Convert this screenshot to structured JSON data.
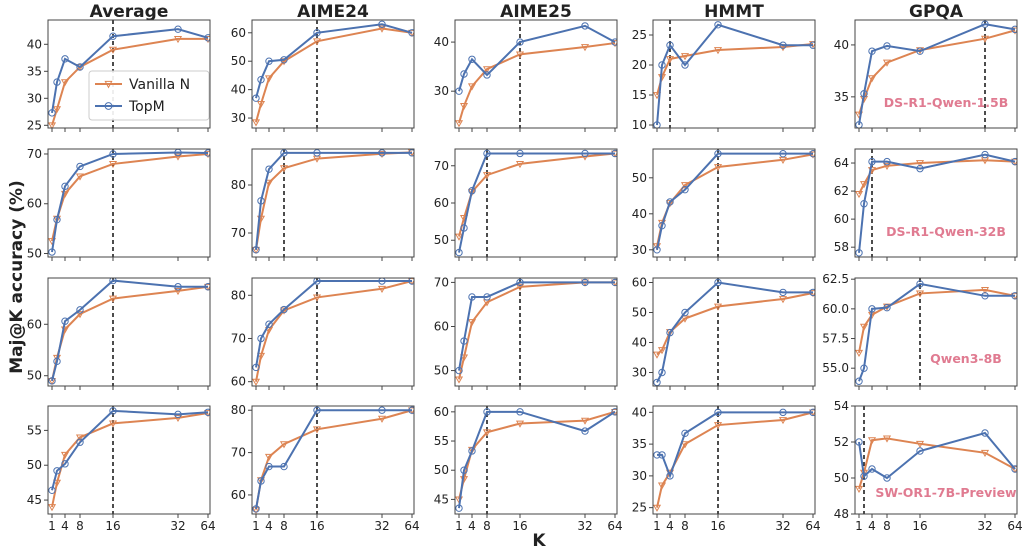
{
  "figure": {
    "xlabel": "K",
    "ylabel": "Maj@K accuracy (%)",
    "columns": [
      "Average",
      "AIME24",
      "AIME25",
      "HMMT",
      "GPQA"
    ],
    "row_labels": [
      "DS-R1-Qwen-1.5B",
      "DS-R1-Qwen-32B",
      "Qwen3-8B",
      "SW-OR1-7B-Preview"
    ],
    "legend": {
      "placement": "inside first panel, upper center",
      "entries": [
        "Vanilla N",
        "TopM"
      ]
    },
    "colors": {
      "vanilla": "#dd8452",
      "topm": "#4c72b0",
      "row_label": "#e07b91",
      "vline": "#000000"
    },
    "x_tick_labels": [
      "1",
      "4",
      "8",
      "16",
      "32",
      "64"
    ]
  },
  "chart_data": [
    {
      "type": "line",
      "row": 0,
      "col": 0,
      "x": [
        1,
        2,
        4,
        8,
        16,
        32,
        64
      ],
      "ylim": [
        24.5,
        44.5
      ],
      "yticks": [
        25,
        30,
        35,
        40
      ],
      "vline": 16,
      "series": [
        {
          "name": "Vanilla N",
          "values": [
            25.0,
            28.0,
            33.0,
            35.8,
            39.0,
            41.0,
            41.0
          ]
        },
        {
          "name": "TopM",
          "values": [
            27.3,
            33.0,
            37.3,
            35.8,
            41.5,
            42.8,
            41.2
          ]
        }
      ]
    },
    {
      "type": "line",
      "row": 0,
      "col": 1,
      "x": [
        1,
        2,
        4,
        8,
        16,
        32,
        64
      ],
      "ylim": [
        26.5,
        64.5
      ],
      "yticks": [
        30,
        40,
        50,
        60
      ],
      "vline": 16,
      "series": [
        {
          "name": "Vanilla N",
          "values": [
            28.5,
            35.0,
            44.0,
            50.0,
            57.0,
            61.5,
            60.0
          ]
        },
        {
          "name": "TopM",
          "values": [
            37.0,
            43.5,
            50.0,
            50.5,
            60.0,
            63.0,
            60.0
          ]
        }
      ]
    },
    {
      "type": "line",
      "row": 0,
      "col": 2,
      "x": [
        1,
        2,
        4,
        8,
        16,
        32,
        64
      ],
      "ylim": [
        22.5,
        44.5
      ],
      "yticks": [
        30,
        40
      ],
      "vline": 16,
      "series": [
        {
          "name": "Vanilla N",
          "values": [
            23.5,
            27.0,
            31.0,
            34.5,
            37.5,
            39.0,
            39.8
          ]
        },
        {
          "name": "TopM",
          "values": [
            30.0,
            33.5,
            36.5,
            33.3,
            40.0,
            43.3,
            40.0
          ]
        }
      ]
    },
    {
      "type": "line",
      "row": 0,
      "col": 3,
      "x": [
        1,
        2,
        4,
        8,
        16,
        32,
        64
      ],
      "ylim": [
        9.5,
        27.5
      ],
      "yticks": [
        10,
        15,
        20,
        25
      ],
      "vline": 4,
      "series": [
        {
          "name": "Vanilla N",
          "values": [
            15.0,
            18.0,
            21.0,
            21.5,
            22.5,
            23.0,
            23.5
          ]
        },
        {
          "name": "TopM",
          "values": [
            10.0,
            20.0,
            23.3,
            20.0,
            26.7,
            23.3,
            23.3
          ]
        }
      ]
    },
    {
      "type": "line",
      "row": 0,
      "col": 4,
      "x": [
        1,
        2,
        4,
        8,
        16,
        32,
        64
      ],
      "ylim": [
        32.0,
        42.4
      ],
      "yticks": [
        35,
        40
      ],
      "vline": 32,
      "series": [
        {
          "name": "Vanilla N",
          "values": [
            33.3,
            34.8,
            36.8,
            38.3,
            39.5,
            40.6,
            41.4
          ]
        },
        {
          "name": "TopM",
          "values": [
            32.3,
            35.3,
            39.4,
            39.9,
            39.4,
            42.0,
            41.5
          ]
        }
      ]
    },
    {
      "type": "line",
      "row": 1,
      "col": 0,
      "x": [
        1,
        2,
        4,
        8,
        16,
        32,
        64
      ],
      "ylim": [
        49.3,
        71.0
      ],
      "yticks": [
        50,
        60,
        70
      ],
      "vline": 16,
      "series": [
        {
          "name": "Vanilla N",
          "values": [
            52.5,
            57.0,
            62.0,
            65.5,
            68.0,
            69.5,
            70.0
          ]
        },
        {
          "name": "TopM",
          "values": [
            50.3,
            56.8,
            63.5,
            67.5,
            70.0,
            70.3,
            70.2
          ]
        }
      ]
    },
    {
      "type": "line",
      "row": 1,
      "col": 1,
      "x": [
        1,
        2,
        4,
        8,
        16,
        32,
        64
      ],
      "ylim": [
        65.0,
        87.5
      ],
      "yticks": [
        70,
        80
      ],
      "vline": 8,
      "series": [
        {
          "name": "Vanilla N",
          "values": [
            66.5,
            73.0,
            80.5,
            83.5,
            85.5,
            86.5,
            86.8
          ]
        },
        {
          "name": "TopM",
          "values": [
            66.5,
            76.7,
            83.3,
            86.7,
            86.7,
            86.7,
            86.7
          ]
        }
      ]
    },
    {
      "type": "line",
      "row": 1,
      "col": 2,
      "x": [
        1,
        2,
        4,
        8,
        16,
        32,
        64
      ],
      "ylim": [
        45.5,
        74.5
      ],
      "yticks": [
        50,
        60,
        70
      ],
      "vline": 8,
      "series": [
        {
          "name": "Vanilla N",
          "values": [
            51.0,
            56.0,
            63.0,
            67.5,
            70.5,
            72.5,
            73.3
          ]
        },
        {
          "name": "TopM",
          "values": [
            46.7,
            53.3,
            63.3,
            73.3,
            73.3,
            73.3,
            73.3
          ]
        }
      ]
    },
    {
      "type": "line",
      "row": 1,
      "col": 3,
      "x": [
        1,
        2,
        4,
        8,
        16,
        32,
        64
      ],
      "ylim": [
        28.0,
        58.0
      ],
      "yticks": [
        30,
        40,
        50
      ],
      "vline": 16,
      "series": [
        {
          "name": "Vanilla N",
          "values": [
            31.0,
            37.5,
            43.0,
            48.0,
            53.0,
            55.0,
            56.5
          ]
        },
        {
          "name": "TopM",
          "values": [
            30.0,
            36.7,
            43.3,
            46.7,
            56.7,
            56.7,
            56.7
          ]
        }
      ]
    },
    {
      "type": "line",
      "row": 1,
      "col": 4,
      "x": [
        1,
        2,
        4,
        8,
        16,
        32,
        64
      ],
      "ylim": [
        57.3,
        65.0
      ],
      "yticks": [
        58,
        60,
        62,
        64
      ],
      "vline": 4,
      "series": [
        {
          "name": "Vanilla N",
          "values": [
            61.8,
            62.5,
            63.5,
            63.8,
            64.0,
            64.2,
            64.1
          ]
        },
        {
          "name": "TopM",
          "values": [
            57.6,
            61.1,
            64.1,
            64.1,
            63.6,
            64.6,
            64.1
          ]
        }
      ]
    },
    {
      "type": "line",
      "row": 2,
      "col": 0,
      "x": [
        1,
        2,
        4,
        8,
        16,
        32,
        64
      ],
      "ylim": [
        48.0,
        69.0
      ],
      "yticks": [
        50,
        60
      ],
      "vline": 16,
      "series": [
        {
          "name": "Vanilla N",
          "values": [
            49.0,
            53.5,
            59.0,
            62.0,
            65.0,
            66.5,
            67.3
          ]
        },
        {
          "name": "TopM",
          "values": [
            49.0,
            52.8,
            60.6,
            62.8,
            68.5,
            67.3,
            67.3
          ]
        }
      ]
    },
    {
      "type": "line",
      "row": 2,
      "col": 1,
      "x": [
        1,
        2,
        4,
        8,
        16,
        32,
        64
      ],
      "ylim": [
        59.0,
        84.0
      ],
      "yticks": [
        60,
        70,
        80
      ],
      "vline": 16,
      "series": [
        {
          "name": "Vanilla N",
          "values": [
            60.0,
            66.0,
            72.0,
            76.5,
            79.5,
            81.5,
            83.3
          ]
        },
        {
          "name": "TopM",
          "values": [
            63.3,
            70.0,
            73.3,
            76.7,
            83.3,
            83.3,
            83.3
          ]
        }
      ]
    },
    {
      "type": "line",
      "row": 2,
      "col": 2,
      "x": [
        1,
        2,
        4,
        8,
        16,
        32,
        64
      ],
      "ylim": [
        46.5,
        71.0
      ],
      "yticks": [
        50,
        60,
        70
      ],
      "vline": 16,
      "series": [
        {
          "name": "Vanilla N",
          "values": [
            48.0,
            53.0,
            61.0,
            65.5,
            69.0,
            70.0,
            70.0
          ]
        },
        {
          "name": "TopM",
          "values": [
            50.0,
            56.7,
            66.7,
            66.7,
            70.0,
            70.0,
            70.0
          ]
        }
      ]
    },
    {
      "type": "line",
      "row": 2,
      "col": 3,
      "x": [
        1,
        2,
        4,
        8,
        16,
        32,
        64
      ],
      "ylim": [
        25.5,
        61.5
      ],
      "yticks": [
        30,
        40,
        50,
        60
      ],
      "vline": 16,
      "series": [
        {
          "name": "Vanilla N",
          "values": [
            36.0,
            37.5,
            43.5,
            48.0,
            52.0,
            54.5,
            56.5
          ]
        },
        {
          "name": "TopM",
          "values": [
            26.7,
            30.0,
            43.3,
            50.0,
            60.0,
            56.7,
            56.7
          ]
        }
      ]
    },
    {
      "type": "line",
      "row": 2,
      "col": 4,
      "x": [
        1,
        2,
        4,
        8,
        16,
        32,
        64
      ],
      "ylim": [
        53.5,
        62.6
      ],
      "yticks": [
        55.0,
        57.5,
        60.0,
        62.5
      ],
      "vline": 16,
      "series": [
        {
          "name": "Vanilla N",
          "values": [
            56.3,
            58.5,
            59.5,
            60.2,
            61.3,
            61.6,
            61.1
          ]
        },
        {
          "name": "TopM",
          "values": [
            53.9,
            55.0,
            60.0,
            60.1,
            62.1,
            61.1,
            61.1
          ]
        }
      ]
    },
    {
      "type": "line",
      "row": 3,
      "col": 0,
      "x": [
        1,
        2,
        4,
        8,
        16,
        32,
        64
      ],
      "ylim": [
        43.0,
        58.5
      ],
      "yticks": [
        45,
        50,
        55
      ],
      "vline": 16,
      "series": [
        {
          "name": "Vanilla N",
          "values": [
            44.0,
            47.5,
            51.5,
            54.0,
            56.0,
            56.8,
            57.5
          ]
        },
        {
          "name": "TopM",
          "values": [
            46.4,
            49.2,
            50.2,
            53.3,
            57.8,
            57.3,
            57.6
          ]
        }
      ]
    },
    {
      "type": "line",
      "row": 3,
      "col": 1,
      "x": [
        1,
        2,
        4,
        8,
        16,
        32,
        64
      ],
      "ylim": [
        55.5,
        81.0
      ],
      "yticks": [
        60,
        70,
        80
      ],
      "vline": 16,
      "series": [
        {
          "name": "Vanilla N",
          "values": [
            56.5,
            63.5,
            69.0,
            72.0,
            75.5,
            78.0,
            80.0
          ]
        },
        {
          "name": "TopM",
          "values": [
            56.7,
            63.3,
            66.7,
            66.7,
            80.0,
            80.0,
            80.0
          ]
        }
      ]
    },
    {
      "type": "line",
      "row": 3,
      "col": 2,
      "x": [
        1,
        2,
        4,
        8,
        16,
        32,
        64
      ],
      "ylim": [
        42.5,
        61.0
      ],
      "yticks": [
        45,
        50,
        55,
        60
      ],
      "vline": 8,
      "series": [
        {
          "name": "Vanilla N",
          "values": [
            45.0,
            48.5,
            53.5,
            56.5,
            58.0,
            58.5,
            60.0
          ]
        },
        {
          "name": "TopM",
          "values": [
            43.5,
            50.0,
            53.3,
            60.0,
            60.0,
            56.7,
            60.0
          ]
        }
      ]
    },
    {
      "type": "line",
      "row": 3,
      "col": 3,
      "x": [
        1,
        2,
        4,
        8,
        16,
        32,
        64
      ],
      "ylim": [
        24.0,
        41.0
      ],
      "yticks": [
        25,
        30,
        35,
        40
      ],
      "vline": 16,
      "series": [
        {
          "name": "Vanilla N",
          "values": [
            25.0,
            28.5,
            30.5,
            35.0,
            38.0,
            38.8,
            40.0
          ]
        },
        {
          "name": "TopM",
          "values": [
            33.3,
            33.3,
            30.0,
            36.7,
            40.0,
            40.0,
            40.0
          ]
        }
      ]
    },
    {
      "type": "line",
      "row": 3,
      "col": 4,
      "x": [
        1,
        2,
        4,
        8,
        16,
        32,
        64
      ],
      "ylim": [
        48.0,
        54.0
      ],
      "yticks": [
        48,
        50,
        52,
        54
      ],
      "vline": 2,
      "series": [
        {
          "name": "Vanilla N",
          "values": [
            49.4,
            50.3,
            52.1,
            52.2,
            51.9,
            51.4,
            50.5
          ]
        },
        {
          "name": "TopM",
          "values": [
            52.0,
            50.1,
            50.5,
            50.0,
            51.5,
            52.5,
            50.5
          ]
        }
      ]
    }
  ]
}
